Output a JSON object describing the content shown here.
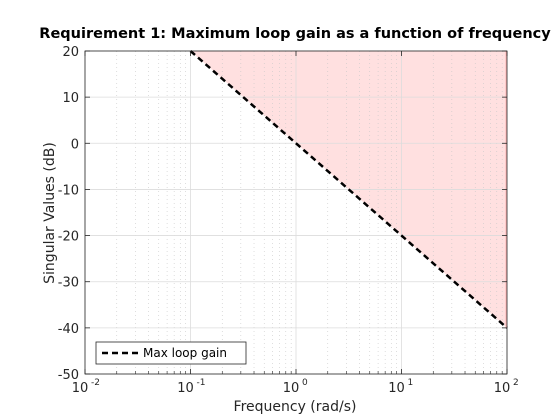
{
  "chart_data": {
    "type": "line",
    "title": "Requirement 1: Maximum loop gain as a function of frequency",
    "xlabel": "Frequency (rad/s)",
    "ylabel": "Singular Values (dB)",
    "xscale": "log",
    "xlim": [
      0.01,
      100
    ],
    "ylim": [
      -50,
      20
    ],
    "x_ticks": [
      {
        "base": "10",
        "exp": "-2",
        "value": 0.01
      },
      {
        "base": "10",
        "exp": "-1",
        "value": 0.1
      },
      {
        "base": "10",
        "exp": "0",
        "value": 1
      },
      {
        "base": "10",
        "exp": "1",
        "value": 10
      },
      {
        "base": "10",
        "exp": "2",
        "value": 100
      }
    ],
    "y_ticks": [
      "20",
      "10",
      "0",
      "-10",
      "-20",
      "-30",
      "-40",
      "-50"
    ],
    "y_tick_values": [
      20,
      10,
      0,
      -10,
      -20,
      -30,
      -40,
      -50
    ],
    "grid": true,
    "minor_grid": true,
    "legend_position": "bottom-left",
    "series": [
      {
        "name": "Max loop gain",
        "style": "dashed",
        "color": "#000000",
        "x": [
          0.1,
          1,
          10,
          100
        ],
        "y": [
          20,
          0,
          -20,
          -40
        ]
      }
    ],
    "region": {
      "description": "area above max loop gain line",
      "color": "#ffe0e0",
      "edge_color": "#ffb3b3"
    }
  }
}
